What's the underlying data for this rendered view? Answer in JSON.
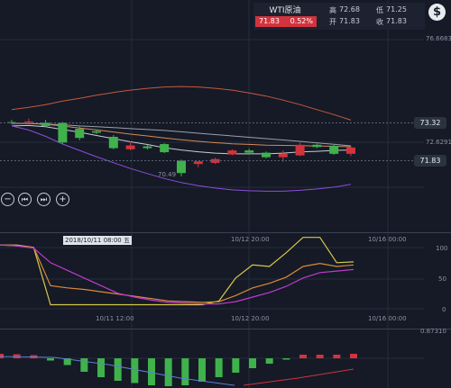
{
  "header": {
    "symbol": "WTI原油",
    "last_price": "71.83",
    "change_pct": "0.52%",
    "high_label": "高",
    "high": "72.68",
    "low_label": "低",
    "low": "71.25",
    "open_label": "开",
    "open": "71.83",
    "close_label": "收",
    "close": "71.83",
    "currency_icon": "dollar-icon",
    "dollar_glyph": "$"
  },
  "main_chart": {
    "axis_top": "76.6683",
    "axis_mid": "72.6291",
    "highlight_tag": "73.32",
    "last_tag": "71.83",
    "low_label": "70.49",
    "x_labels": [
      "2018/10/11 08:00 五",
      "10/12 20:00",
      "10/16 00:00"
    ],
    "controls": {
      "zoom_out": "−",
      "first": "⏮",
      "last": "⏭",
      "zoom_in": "+"
    }
  },
  "kdj": {
    "axis": [
      "100",
      "50",
      "0"
    ],
    "x_labels": [
      "10/11 12:00",
      "10/12 20:00",
      "10/16 00:00"
    ]
  },
  "macd": {
    "axis_top": "0.87310"
  },
  "colors": {
    "up": "#d2333d",
    "down": "#3fb24c",
    "bg": "#151a26",
    "upper_band": "#c8583c",
    "ma_white": "#c9cdd8",
    "ma_orange": "#d58a5a",
    "lower_band": "#8b4fd8"
  },
  "chart_data": [
    {
      "type": "candlestick",
      "candles": [
        {
          "o": 72.95,
          "h": 73.05,
          "l": 72.85,
          "c": 72.92
        },
        {
          "o": 72.95,
          "h": 73.1,
          "l": 72.9,
          "c": 72.98
        },
        {
          "o": 72.92,
          "h": 73.05,
          "l": 72.75,
          "c": 72.78
        },
        {
          "o": 72.92,
          "h": 72.96,
          "l": 72.0,
          "c": 72.05
        },
        {
          "o": 72.65,
          "h": 72.75,
          "l": 72.15,
          "c": 72.25
        },
        {
          "o": 72.55,
          "h": 72.62,
          "l": 72.42,
          "c": 72.48
        },
        {
          "o": 72.3,
          "h": 72.38,
          "l": 71.75,
          "c": 71.8
        },
        {
          "o": 71.75,
          "h": 72.1,
          "l": 71.7,
          "c": 71.92
        },
        {
          "o": 71.88,
          "h": 71.95,
          "l": 71.74,
          "c": 71.8
        },
        {
          "o": 71.98,
          "h": 72.02,
          "l": 71.58,
          "c": 71.62
        },
        {
          "o": 71.25,
          "h": 71.3,
          "l": 70.55,
          "c": 70.7
        },
        {
          "o": 71.1,
          "h": 71.2,
          "l": 70.95,
          "c": 71.22
        },
        {
          "o": 71.15,
          "h": 71.38,
          "l": 71.1,
          "c": 71.32
        },
        {
          "o": 71.52,
          "h": 71.75,
          "l": 71.48,
          "c": 71.7
        },
        {
          "o": 71.7,
          "h": 71.78,
          "l": 71.55,
          "c": 71.6
        },
        {
          "o": 71.6,
          "h": 71.65,
          "l": 71.35,
          "c": 71.4
        },
        {
          "o": 71.4,
          "h": 71.7,
          "l": 71.2,
          "c": 71.55
        },
        {
          "o": 71.48,
          "h": 72.05,
          "l": 71.45,
          "c": 71.95
        },
        {
          "o": 71.95,
          "h": 72.0,
          "l": 71.8,
          "c": 71.85
        },
        {
          "o": 71.9,
          "h": 71.95,
          "l": 71.5,
          "c": 71.55
        },
        {
          "o": 71.55,
          "h": 71.88,
          "l": 71.45,
          "c": 71.83
        }
      ],
      "ma_white": [
        72.78,
        72.8,
        72.75,
        72.62,
        72.5,
        72.36,
        72.22,
        72.08,
        71.96,
        71.82,
        71.72,
        71.64,
        71.58,
        71.55,
        71.55,
        71.55,
        71.58,
        71.63,
        71.66,
        71.7,
        71.72
      ],
      "ma_gray": [
        72.9,
        72.89,
        72.86,
        72.83,
        72.78,
        72.75,
        72.71,
        72.66,
        72.62,
        72.58,
        72.52,
        72.46,
        72.4,
        72.34,
        72.28,
        72.22,
        72.16,
        72.1,
        72.03,
        71.97,
        71.9
      ],
      "upper_band": [
        73.5,
        73.6,
        73.72,
        73.88,
        74.0,
        74.14,
        74.26,
        74.36,
        74.44,
        74.5,
        74.52,
        74.5,
        74.44,
        74.36,
        74.24,
        74.1,
        73.92,
        73.72,
        73.5,
        73.28,
        73.04
      ],
      "lower_band": [
        72.78,
        72.6,
        72.32,
        71.98,
        71.7,
        71.42,
        71.16,
        70.9,
        70.68,
        70.46,
        70.28,
        70.14,
        70.04,
        69.96,
        69.92,
        69.9,
        69.9,
        69.94,
        70.0,
        70.08,
        70.2
      ]
    },
    {
      "type": "line",
      "ylim": [
        0,
        100
      ],
      "series": [
        {
          "values": [
            88,
            88,
            85,
            10,
            10,
            10,
            10,
            10,
            10,
            10,
            10,
            10,
            10,
            15,
            45,
            62,
            60,
            78,
            98,
            98,
            65,
            66
          ]
        },
        {
          "values": [
            88,
            87,
            85,
            35,
            32,
            30,
            27,
            24,
            21,
            18,
            15,
            14,
            13,
            14,
            22,
            32,
            38,
            46,
            60,
            64,
            60,
            62
          ]
        },
        {
          "values": [
            88,
            87,
            84,
            65,
            55,
            45,
            35,
            25,
            20,
            16,
            13,
            12,
            11,
            11,
            14,
            20,
            26,
            34,
            45,
            52,
            54,
            56
          ]
        }
      ]
    },
    {
      "type": "bar",
      "values": [
        0.1,
        0.09,
        0.07,
        -0.05,
        -0.15,
        -0.3,
        -0.42,
        -0.5,
        -0.55,
        -0.6,
        -0.62,
        -0.6,
        -0.52,
        -0.42,
        -0.32,
        -0.22,
        -0.12,
        -0.03,
        0.08,
        0.08,
        0.08,
        0.1
      ]
    }
  ]
}
